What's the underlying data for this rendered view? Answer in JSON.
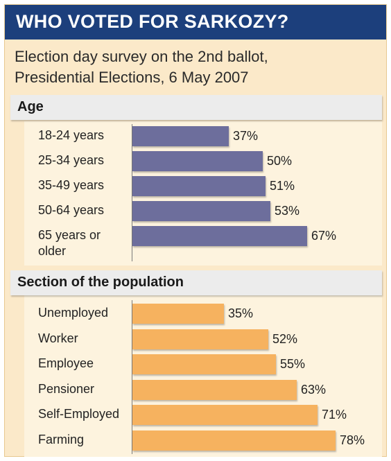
{
  "title": "WHO VOTED FOR SARKOZY?",
  "subtitle_line1": "Election day survey on the 2nd ballot,",
  "subtitle_line2": "Presidential Elections, 6 May 2007",
  "colors": {
    "title_bar": "#1c3f7c",
    "background": "#fbe9c9",
    "age_bars": "#6d6e9c",
    "population_bars": "#f6b25f"
  },
  "chart_data": [
    {
      "type": "bar",
      "orientation": "horizontal",
      "title": "Age",
      "unit": "%",
      "categories": [
        "18-24 years",
        "25-34 years",
        "35-49 years",
        "50-64 years",
        "65 years or older"
      ],
      "category_lines": [
        [
          "18-24 years"
        ],
        [
          "25-34 years"
        ],
        [
          "35-49 years"
        ],
        [
          "50-64 years"
        ],
        [
          "65 years or",
          "older"
        ]
      ],
      "values": [
        37,
        50,
        51,
        53,
        67
      ],
      "value_labels": [
        "37%",
        "50%",
        "51%",
        "53%",
        "67%"
      ]
    },
    {
      "type": "bar",
      "orientation": "horizontal",
      "title": "Section of the population",
      "unit": "%",
      "categories": [
        "Unemployed",
        "Worker",
        "Employee",
        "Pensioner",
        "Self-Employed",
        "Farming"
      ],
      "category_lines": [
        [
          "Unemployed"
        ],
        [
          "Worker"
        ],
        [
          "Employee"
        ],
        [
          "Pensioner"
        ],
        [
          "Self-Employed"
        ],
        [
          "Farming"
        ]
      ],
      "values": [
        35,
        52,
        55,
        63,
        71,
        78
      ],
      "value_labels": [
        "35%",
        "52%",
        "55%",
        "63%",
        "71%",
        "78%"
      ]
    }
  ]
}
